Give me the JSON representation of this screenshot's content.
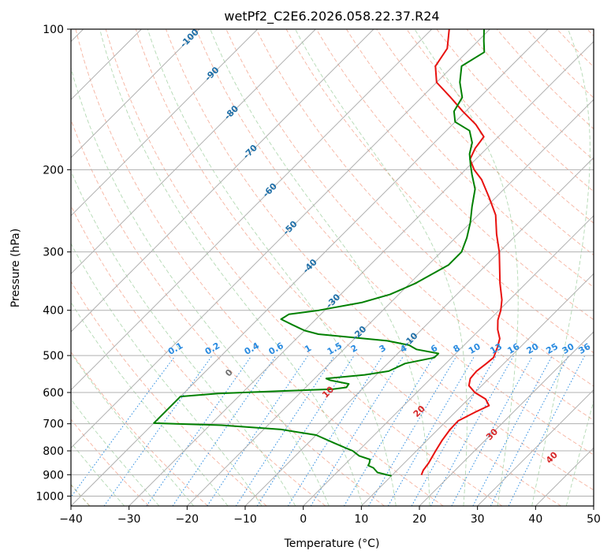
{
  "chart_data": {
    "type": "line",
    "subtype": "skew-T log-P diagram",
    "title": "wetPf2_C2E6.2026.058.22.37.R24",
    "xlabel": "Temperature (°C)",
    "ylabel": "Pressure (hPa)",
    "xlim": [
      -40,
      50
    ],
    "ylim": [
      1050,
      100
    ],
    "y_scale": "log",
    "grid": true,
    "x_ticks": [
      -40,
      -30,
      -20,
      -10,
      0,
      10,
      20,
      30,
      40,
      50
    ],
    "x_tick_labels": [
      "−40",
      "−30",
      "−20",
      "−10",
      "0",
      "10",
      "20",
      "30",
      "40",
      "50"
    ],
    "y_ticks": [
      1000,
      900,
      800,
      700,
      600,
      500,
      400,
      300,
      200,
      100
    ],
    "y_tick_labels": [
      "1000",
      "900",
      "800",
      "700",
      "600",
      "500",
      "400",
      "300",
      "200",
      "100"
    ],
    "colors": {
      "temperature": "#e8110f",
      "dewpoint": "#008000",
      "isotherm_label": "#1f6fa8",
      "mixing_ratio": "#2a8be0",
      "moist_adiabat_label": "#d62728",
      "dry_adiabat": "#f08060",
      "moist_adiabat": "#80c080",
      "grid": "#b0b0b0"
    },
    "isotherm_labels": [
      "-100",
      "-90",
      "-80",
      "-70",
      "-60",
      "-50",
      "-40",
      "-30",
      "-20",
      "-10"
    ],
    "mixing_ratio_labels": [
      "0.1",
      "0.2",
      "0.4",
      "0.6",
      "1",
      "1.5",
      "2",
      "3",
      "4",
      "6",
      "8",
      "10",
      "13",
      "16",
      "20",
      "25",
      "30",
      "36"
    ],
    "moist_adiabat_labels": [
      "0",
      "10",
      "20",
      "30",
      "40"
    ],
    "series": [
      {
        "name": "temperature",
        "points": [
          [
            901,
            15.0
          ],
          [
            880,
            14.5
          ],
          [
            850,
            14.2
          ],
          [
            800,
            13.3
          ],
          [
            760,
            12.6
          ],
          [
            720,
            12.1
          ],
          [
            690,
            12.0
          ],
          [
            660,
            13.5
          ],
          [
            640,
            14.7
          ],
          [
            620,
            13.0
          ],
          [
            600,
            10.0
          ],
          [
            580,
            7.8
          ],
          [
            560,
            6.8
          ],
          [
            540,
            6.6
          ],
          [
            520,
            7.0
          ],
          [
            505,
            7.2
          ],
          [
            480,
            6.1
          ],
          [
            460,
            5.0
          ],
          [
            440,
            3.1
          ],
          [
            420,
            1.5
          ],
          [
            400,
            0.3
          ],
          [
            380,
            -1.3
          ],
          [
            350,
            -4.5
          ],
          [
            300,
            -10.0
          ],
          [
            275,
            -13.5
          ],
          [
            250,
            -17.0
          ],
          [
            230,
            -21.0
          ],
          [
            210,
            -25.5
          ],
          [
            200,
            -28.5
          ],
          [
            190,
            -31.0
          ],
          [
            180,
            -32.0
          ],
          [
            170,
            -32.5
          ],
          [
            160,
            -36.0
          ],
          [
            150,
            -40.5
          ],
          [
            140,
            -45.0
          ],
          [
            130,
            -50.0
          ],
          [
            120,
            -53.0
          ],
          [
            110,
            -54.0
          ],
          [
            100,
            -57.0
          ]
        ]
      },
      {
        "name": "dewpoint",
        "points": [
          [
            905,
            10.0
          ],
          [
            890,
            7.0
          ],
          [
            870,
            5.5
          ],
          [
            860,
            4.2
          ],
          [
            850,
            4.0
          ],
          [
            835,
            3.5
          ],
          [
            820,
            1.0
          ],
          [
            810,
            0.0
          ],
          [
            800,
            -1.0
          ],
          [
            790,
            -2.5
          ],
          [
            770,
            -5.5
          ],
          [
            740,
            -10.0
          ],
          [
            720,
            -17.0
          ],
          [
            705,
            -28.0
          ],
          [
            698,
            -40.0
          ],
          [
            612,
            -40.0
          ],
          [
            603,
            -34.0
          ],
          [
            596,
            -24.0
          ],
          [
            590,
            -15.0
          ],
          [
            585,
            -13.0
          ],
          [
            575,
            -13.2
          ],
          [
            565,
            -17.0
          ],
          [
            560,
            -18.0
          ],
          [
            550,
            -12.0
          ],
          [
            540,
            -8.5
          ],
          [
            520,
            -7.0
          ],
          [
            505,
            -3.0
          ],
          [
            495,
            -3.0
          ],
          [
            485,
            -7.5
          ],
          [
            475,
            -9.5
          ],
          [
            465,
            -14.0
          ],
          [
            458,
            -20.0
          ],
          [
            450,
            -27.0
          ],
          [
            442,
            -30.0
          ],
          [
            430,
            -33.0
          ],
          [
            418,
            -36.0
          ],
          [
            408,
            -35.5
          ],
          [
            400,
            -31.0
          ],
          [
            385,
            -25.0
          ],
          [
            370,
            -21.5
          ],
          [
            350,
            -19.0
          ],
          [
            320,
            -16.5
          ],
          [
            300,
            -16.5
          ],
          [
            280,
            -18.0
          ],
          [
            260,
            -20.0
          ],
          [
            240,
            -22.5
          ],
          [
            220,
            -25.0
          ],
          [
            205,
            -28.0
          ],
          [
            195,
            -30.0
          ],
          [
            185,
            -32.0
          ],
          [
            175,
            -33.5
          ],
          [
            165,
            -36.0
          ],
          [
            158,
            -40.0
          ],
          [
            150,
            -42.0
          ],
          [
            140,
            -43.0
          ],
          [
            130,
            -46.0
          ],
          [
            120,
            -48.5
          ],
          [
            112,
            -47.0
          ],
          [
            106,
            -49.0
          ],
          [
            100,
            -51.0
          ]
        ]
      }
    ]
  }
}
